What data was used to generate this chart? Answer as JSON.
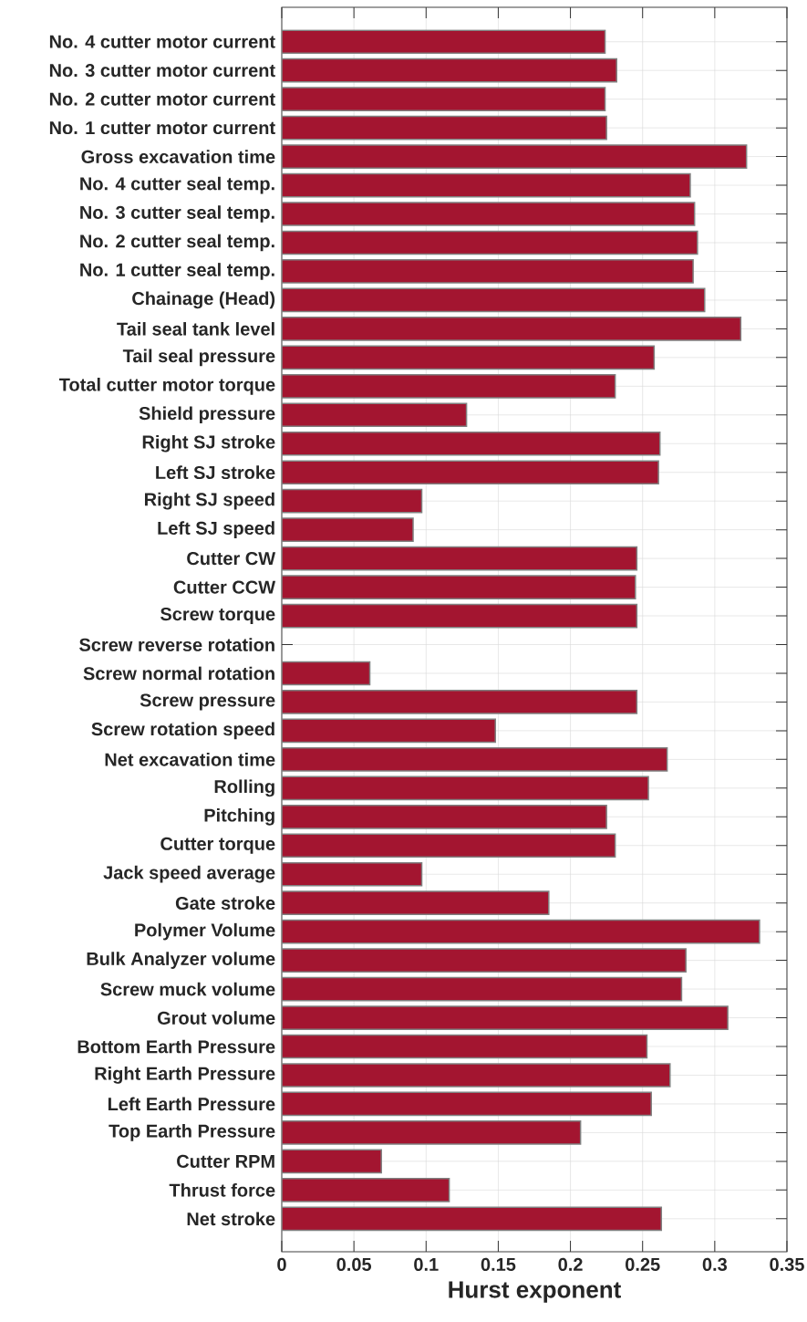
{
  "chart_data": {
    "type": "bar",
    "orientation": "horizontal",
    "xlabel": "Hurst exponent",
    "color": "#a31530",
    "grid": true,
    "categories": [
      "No. 4 cutter motor current",
      "No. 3 cutter motor current",
      "No. 2 cutter motor current",
      "No. 1 cutter motor current",
      "Gross excavation time",
      "No. 4 cutter seal temp.",
      "No. 3 cutter seal temp.",
      "No. 2 cutter seal temp.",
      "No. 1 cutter seal temp.",
      "Chainage (Head)",
      "Tail seal tank level",
      "Tail seal pressure",
      "Total cutter motor torque",
      "Shield pressure",
      "Right SJ stroke",
      "Left SJ stroke",
      "Right SJ speed",
      "Left SJ speed",
      "Cutter CW",
      "Cutter CCW",
      "Screw torque",
      "Screw reverse rotation",
      "Screw normal rotation",
      "Screw pressure",
      "Screw rotation speed",
      "Net excavation time",
      "Rolling",
      "Pitching",
      "Cutter torque",
      "Jack speed average",
      "Gate stroke",
      "Polymer Volume",
      "Bulk Analyzer volume",
      "Screw muck volume",
      "Grout volume",
      "Bottom Earth Pressure",
      "Right Earth Pressure",
      "Left Earth Pressure",
      "Top Earth Pressure",
      "Cutter RPM",
      "Thrust force",
      "Net stroke"
    ],
    "values": [
      0.224,
      0.232,
      0.224,
      0.225,
      0.322,
      0.283,
      0.286,
      0.288,
      0.285,
      0.293,
      0.318,
      0.258,
      0.231,
      0.128,
      0.262,
      0.261,
      0.097,
      0.091,
      0.246,
      0.245,
      0.246,
      null,
      0.061,
      0.246,
      0.148,
      0.267,
      0.254,
      0.225,
      0.231,
      0.097,
      0.185,
      0.331,
      0.28,
      0.277,
      0.309,
      0.253,
      0.269,
      0.256,
      0.207,
      0.069,
      0.116,
      0.263
    ],
    "xlim": [
      0,
      0.35
    ],
    "xticks": [
      0,
      0.05,
      0.1,
      0.15,
      0.2,
      0.25,
      0.3,
      0.35
    ]
  }
}
